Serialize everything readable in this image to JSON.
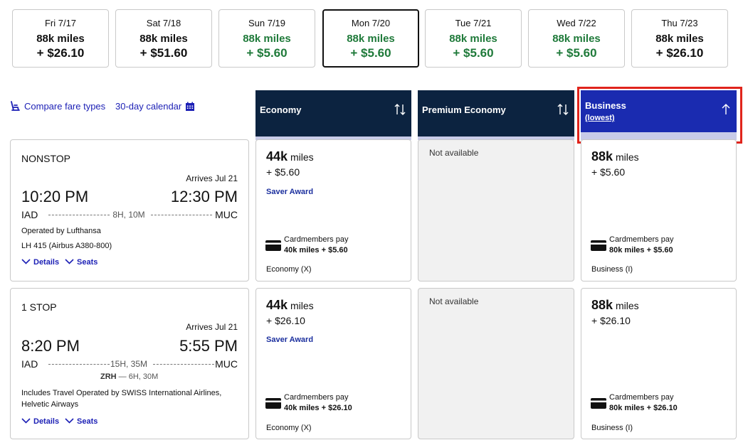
{
  "dates": [
    {
      "day": "Fri 7/17",
      "miles": "88k miles",
      "price": "+ $26.10",
      "green": false,
      "selected": false
    },
    {
      "day": "Sat 7/18",
      "miles": "88k miles",
      "price": "+ $51.60",
      "green": false,
      "selected": false
    },
    {
      "day": "Sun 7/19",
      "miles": "88k miles",
      "price": "+ $5.60",
      "green": true,
      "selected": false
    },
    {
      "day": "Mon 7/20",
      "miles": "88k miles",
      "price": "+ $5.60",
      "green": true,
      "selected": true
    },
    {
      "day": "Tue 7/21",
      "miles": "88k miles",
      "price": "+ $5.60",
      "green": true,
      "selected": false
    },
    {
      "day": "Wed 7/22",
      "miles": "88k miles",
      "price": "+ $5.60",
      "green": true,
      "selected": false
    },
    {
      "day": "Thu 7/23",
      "miles": "88k miles",
      "price": "+ $26.10",
      "green": false,
      "selected": false
    }
  ],
  "toolbar": {
    "compare_label": "Compare fare types",
    "calendar_label": "30-day calendar"
  },
  "fare_headers": {
    "economy": "Economy",
    "premium": "Premium Economy",
    "business": "Business",
    "business_sub": "(lowest)"
  },
  "flights": [
    {
      "stops": "NONSTOP",
      "arrives": "Arrives Jul 21",
      "depart_time": "10:20 PM",
      "arrive_time": "12:30 PM",
      "origin": "IAD",
      "destination": "MUC",
      "duration": "8H, 10M",
      "operated": "Operated by Lufthansa",
      "flight_info": "LH 415 (Airbus A380-800)",
      "details": "Details",
      "seats": "Seats",
      "economy": {
        "miles_num": "44k",
        "miles_unit": "miles",
        "price": "+ $5.60",
        "award": "Saver Award",
        "cm_label": "Cardmembers pay",
        "cm_price": "40k miles + $5.60",
        "class": "Economy (X)"
      },
      "premium": {
        "na": "Not available"
      },
      "business": {
        "miles_num": "88k",
        "miles_unit": "miles",
        "price": "+ $5.60",
        "cm_label": "Cardmembers pay",
        "cm_price": "80k miles + $5.60",
        "class": "Business (I)"
      }
    },
    {
      "stops": "1 STOP",
      "arrives": "Arrives Jul 21",
      "depart_time": "8:20 PM",
      "arrive_time": "5:55 PM",
      "origin": "IAD",
      "destination": "MUC",
      "duration": "15H, 35M",
      "layover_code": "ZRH",
      "layover_time": "— 6H, 30M",
      "operated": "Includes Travel Operated by SWISS International Airlines, Helvetic Airways",
      "details": "Details",
      "seats": "Seats",
      "economy": {
        "miles_num": "44k",
        "miles_unit": "miles",
        "price": "+ $26.10",
        "award": "Saver Award",
        "cm_label": "Cardmembers pay",
        "cm_price": "40k miles + $26.10",
        "class": "Economy (X)"
      },
      "premium": {
        "na": "Not available"
      },
      "business": {
        "miles_num": "88k",
        "miles_unit": "miles",
        "price": "+ $26.10",
        "cm_label": "Cardmembers pay",
        "cm_price": "80k miles + $26.10",
        "class": "Business (I)"
      }
    }
  ],
  "colors": {
    "navy": "#0c2340",
    "business_blue": "#1a2bb0",
    "link_blue": "#1b1fb5",
    "green": "#1f7a3a",
    "highlight_red": "#e0241b"
  }
}
